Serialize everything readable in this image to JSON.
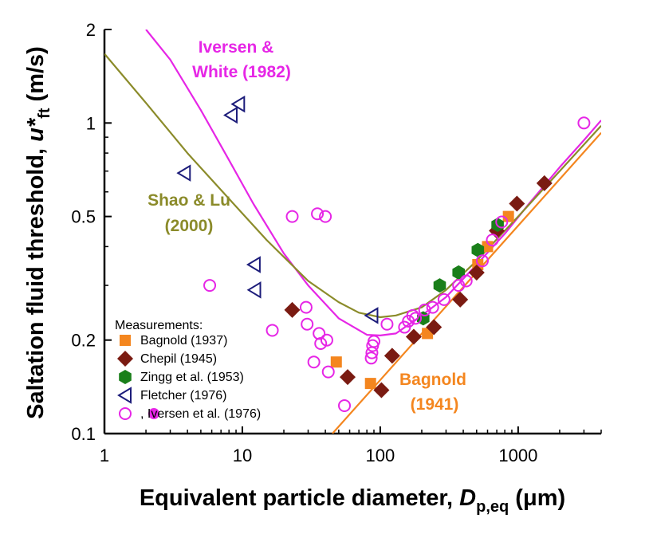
{
  "chart_data": {
    "type": "scatter",
    "xscale": "log",
    "yscale": "log",
    "xlim": [
      1,
      4000
    ],
    "ylim": [
      0.1,
      2
    ],
    "xticks": [
      "1",
      "10",
      "100",
      "1000"
    ],
    "yticks": [
      "0.1",
      "0.2",
      "0.5",
      "1",
      "2"
    ],
    "xlabel": {
      "main": "Equivalent particle diameter, ",
      "var": "D",
      "sub": "p,eq",
      "unit": " (μm)"
    },
    "ylabel": {
      "main": "Saltation fluid threshold, ",
      "var": "u*",
      "sub": "ft",
      "unit": " (m/s)"
    },
    "legend_title": "Measurements:",
    "legend_placement": "bottom-left",
    "colors": {
      "bagnold": "#f4861f",
      "chepil": "#7a1b12",
      "zingg": "#1a7f1a",
      "fletcher": "#1c1c7a",
      "iversen": "#e626e6",
      "shao_lu": "#8b8b2a"
    },
    "series": [
      {
        "name": "Bagnold (1937)",
        "marker": "square",
        "color": "#f4861f",
        "points": [
          [
            48,
            0.17
          ],
          [
            85,
            0.145
          ],
          [
            220,
            0.21
          ],
          [
            510,
            0.35
          ],
          [
            600,
            0.4
          ],
          [
            850,
            0.5
          ]
        ]
      },
      {
        "name": "Chepil (1945)",
        "marker": "diamond",
        "color": "#7a1b12",
        "points": [
          [
            23,
            0.25
          ],
          [
            58,
            0.152
          ],
          [
            102,
            0.138
          ],
          [
            122,
            0.178
          ],
          [
            175,
            0.205
          ],
          [
            245,
            0.22
          ],
          [
            380,
            0.27
          ],
          [
            500,
            0.33
          ],
          [
            700,
            0.45
          ],
          [
            980,
            0.55
          ],
          [
            1550,
            0.64
          ]
        ]
      },
      {
        "name": "Zingg et al. (1953)",
        "marker": "hexagon",
        "color": "#1a7f1a",
        "points": [
          [
            205,
            0.235
          ],
          [
            270,
            0.3
          ],
          [
            370,
            0.33
          ],
          [
            510,
            0.39
          ],
          [
            710,
            0.47
          ]
        ]
      },
      {
        "name": "Fletcher (1976)",
        "marker": "triangle-left",
        "color": "#1c1c7a",
        "points": [
          [
            3.8,
            0.69
          ],
          [
            8.3,
            1.06
          ],
          [
            9.4,
            1.15
          ],
          [
            12.2,
            0.35
          ],
          [
            12.3,
            0.29
          ],
          [
            87,
            0.24
          ]
        ]
      },
      {
        "name": "Iversen et al. (1976)",
        "marker": "circle",
        "color": "#e626e6",
        "legend_label": ",        Iversen et al. (1976)",
        "points": [
          [
            5.8,
            0.3
          ],
          [
            16.5,
            0.215
          ],
          [
            23,
            0.5
          ],
          [
            29,
            0.255
          ],
          [
            29.5,
            0.225
          ],
          [
            33,
            0.17
          ],
          [
            35,
            0.51
          ],
          [
            36,
            0.21
          ],
          [
            37,
            0.195
          ],
          [
            40,
            0.5
          ],
          [
            41,
            0.2
          ],
          [
            42,
            0.158
          ],
          [
            55,
            0.123
          ],
          [
            86,
            0.175
          ],
          [
            87,
            0.182
          ],
          [
            88,
            0.192
          ],
          [
            90,
            0.198
          ],
          [
            112,
            0.225
          ],
          [
            150,
            0.22
          ],
          [
            160,
            0.23
          ],
          [
            172,
            0.24
          ],
          [
            180,
            0.235
          ],
          [
            210,
            0.25
          ],
          [
            240,
            0.255
          ],
          [
            290,
            0.27
          ],
          [
            370,
            0.3
          ],
          [
            420,
            0.31
          ],
          [
            550,
            0.36
          ],
          [
            650,
            0.42
          ],
          [
            760,
            0.48
          ],
          [
            3000,
            1.0
          ]
        ]
      }
    ],
    "curves": [
      {
        "label_lines": [
          "Iversen &",
          "White (1982)"
        ],
        "color": "#e626e6",
        "points": [
          [
            2.0,
            2.0
          ],
          [
            3,
            1.6
          ],
          [
            5,
            1.1
          ],
          [
            8,
            0.76
          ],
          [
            12,
            0.55
          ],
          [
            20,
            0.38
          ],
          [
            30,
            0.3
          ],
          [
            50,
            0.235
          ],
          [
            80,
            0.208
          ],
          [
            100,
            0.207
          ],
          [
            130,
            0.21
          ],
          [
            200,
            0.24
          ],
          [
            300,
            0.275
          ],
          [
            500,
            0.35
          ],
          [
            800,
            0.44
          ],
          [
            1200,
            0.55
          ],
          [
            2000,
            0.72
          ],
          [
            3000,
            0.88
          ],
          [
            4000,
            1.02
          ]
        ]
      },
      {
        "label_lines": [
          "Shao & Lu",
          "(2000)"
        ],
        "color": "#8b8b2a",
        "points": [
          [
            1,
            1.67
          ],
          [
            2,
            1.16
          ],
          [
            4,
            0.8
          ],
          [
            8,
            0.57
          ],
          [
            15,
            0.42
          ],
          [
            30,
            0.31
          ],
          [
            50,
            0.265
          ],
          [
            70,
            0.245
          ],
          [
            100,
            0.237
          ],
          [
            130,
            0.24
          ],
          [
            200,
            0.255
          ],
          [
            300,
            0.29
          ],
          [
            500,
            0.36
          ],
          [
            1000,
            0.5
          ],
          [
            2000,
            0.7
          ],
          [
            4000,
            0.98
          ]
        ]
      },
      {
        "label_lines": [
          "Bagnold",
          "(1941)"
        ],
        "color": "#f4861f",
        "points": [
          [
            45,
            0.1
          ],
          [
            4000,
            0.93
          ]
        ]
      }
    ]
  }
}
